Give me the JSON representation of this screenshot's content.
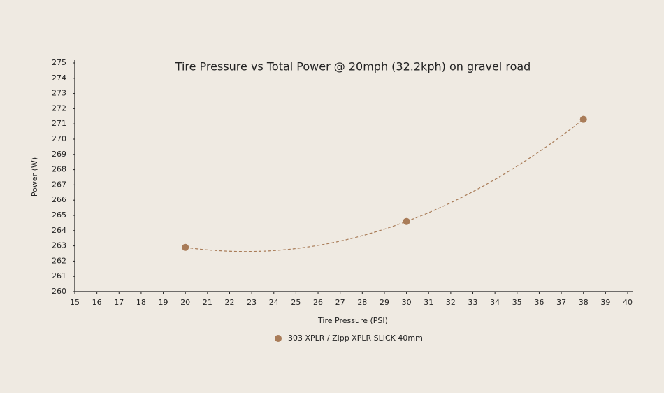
{
  "chart_data": {
    "type": "scatter",
    "title": "Tire Pressure vs Total Power @ 20mph (32.2kph) on gravel road",
    "x_label": "Tire Pressure (PSI)",
    "y_label": "Power (W)",
    "series": [
      {
        "name": "303 XPLR / Zipp XPLR SLICK 40mm",
        "color": "#a97c58",
        "x": [
          20,
          30,
          38
        ],
        "values": [
          262.9,
          264.6,
          271.3
        ]
      }
    ],
    "trendline": "polynomial",
    "xlim": [
      15,
      40
    ],
    "xticks": [
      15,
      16,
      17,
      18,
      19,
      20,
      21,
      22,
      23,
      24,
      25,
      26,
      27,
      28,
      29,
      30,
      31,
      32,
      33,
      34,
      35,
      36,
      37,
      38,
      39,
      40
    ],
    "ylim": [
      260,
      275
    ],
    "yticks": [
      260,
      261,
      262,
      263,
      264,
      265,
      266,
      267,
      268,
      269,
      270,
      271,
      272,
      273,
      274,
      275
    ],
    "legend": "bottom"
  }
}
